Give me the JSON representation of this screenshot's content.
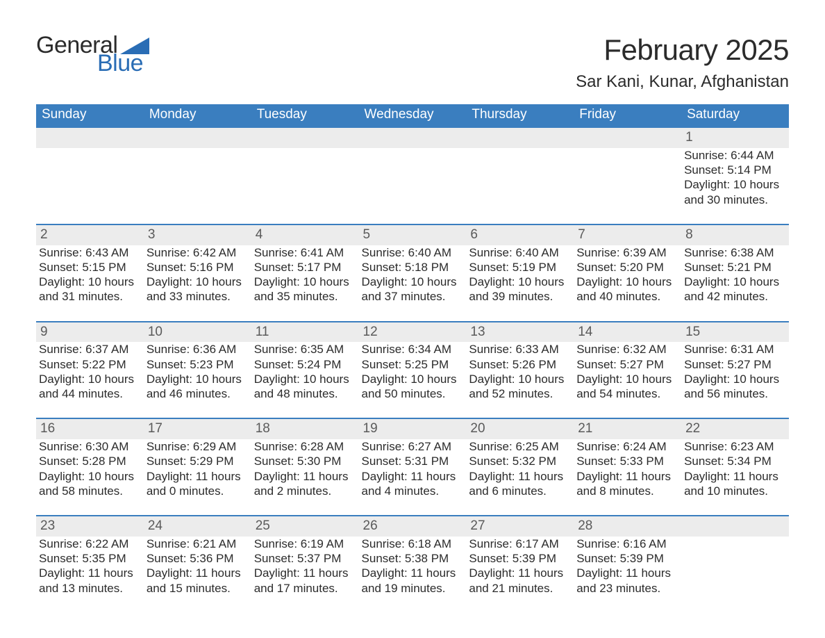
{
  "logo": {
    "text1": "General",
    "text2": "Blue"
  },
  "header": {
    "month_title": "February 2025",
    "location": "Sar Kani, Kunar, Afghanistan"
  },
  "colors": {
    "header_bg": "#3a7ebf",
    "header_text": "#ffffff",
    "daynum_bg": "#ececec",
    "daynum_border": "#3a7ebf",
    "body_text": "#2b2b2b",
    "daynum_text": "#5a5a5a",
    "logo_dark": "#2b2b2b",
    "logo_blue": "#2a6db5",
    "page_bg": "#ffffff"
  },
  "fonts": {
    "family": "Segoe UI / Arial",
    "month_title_pt": 42,
    "location_pt": 24,
    "weekday_pt": 19,
    "daynum_pt": 19,
    "detail_pt": 17
  },
  "weekdays": [
    "Sunday",
    "Monday",
    "Tuesday",
    "Wednesday",
    "Thursday",
    "Friday",
    "Saturday"
  ],
  "weeks": [
    [
      null,
      null,
      null,
      null,
      null,
      null,
      {
        "n": "1",
        "sunrise": "Sunrise: 6:44 AM",
        "sunset": "Sunset: 5:14 PM",
        "day1": "Daylight: 10 hours",
        "day2": "and 30 minutes."
      }
    ],
    [
      {
        "n": "2",
        "sunrise": "Sunrise: 6:43 AM",
        "sunset": "Sunset: 5:15 PM",
        "day1": "Daylight: 10 hours",
        "day2": "and 31 minutes."
      },
      {
        "n": "3",
        "sunrise": "Sunrise: 6:42 AM",
        "sunset": "Sunset: 5:16 PM",
        "day1": "Daylight: 10 hours",
        "day2": "and 33 minutes."
      },
      {
        "n": "4",
        "sunrise": "Sunrise: 6:41 AM",
        "sunset": "Sunset: 5:17 PM",
        "day1": "Daylight: 10 hours",
        "day2": "and 35 minutes."
      },
      {
        "n": "5",
        "sunrise": "Sunrise: 6:40 AM",
        "sunset": "Sunset: 5:18 PM",
        "day1": "Daylight: 10 hours",
        "day2": "and 37 minutes."
      },
      {
        "n": "6",
        "sunrise": "Sunrise: 6:40 AM",
        "sunset": "Sunset: 5:19 PM",
        "day1": "Daylight: 10 hours",
        "day2": "and 39 minutes."
      },
      {
        "n": "7",
        "sunrise": "Sunrise: 6:39 AM",
        "sunset": "Sunset: 5:20 PM",
        "day1": "Daylight: 10 hours",
        "day2": "and 40 minutes."
      },
      {
        "n": "8",
        "sunrise": "Sunrise: 6:38 AM",
        "sunset": "Sunset: 5:21 PM",
        "day1": "Daylight: 10 hours",
        "day2": "and 42 minutes."
      }
    ],
    [
      {
        "n": "9",
        "sunrise": "Sunrise: 6:37 AM",
        "sunset": "Sunset: 5:22 PM",
        "day1": "Daylight: 10 hours",
        "day2": "and 44 minutes."
      },
      {
        "n": "10",
        "sunrise": "Sunrise: 6:36 AM",
        "sunset": "Sunset: 5:23 PM",
        "day1": "Daylight: 10 hours",
        "day2": "and 46 minutes."
      },
      {
        "n": "11",
        "sunrise": "Sunrise: 6:35 AM",
        "sunset": "Sunset: 5:24 PM",
        "day1": "Daylight: 10 hours",
        "day2": "and 48 minutes."
      },
      {
        "n": "12",
        "sunrise": "Sunrise: 6:34 AM",
        "sunset": "Sunset: 5:25 PM",
        "day1": "Daylight: 10 hours",
        "day2": "and 50 minutes."
      },
      {
        "n": "13",
        "sunrise": "Sunrise: 6:33 AM",
        "sunset": "Sunset: 5:26 PM",
        "day1": "Daylight: 10 hours",
        "day2": "and 52 minutes."
      },
      {
        "n": "14",
        "sunrise": "Sunrise: 6:32 AM",
        "sunset": "Sunset: 5:27 PM",
        "day1": "Daylight: 10 hours",
        "day2": "and 54 minutes."
      },
      {
        "n": "15",
        "sunrise": "Sunrise: 6:31 AM",
        "sunset": "Sunset: 5:27 PM",
        "day1": "Daylight: 10 hours",
        "day2": "and 56 minutes."
      }
    ],
    [
      {
        "n": "16",
        "sunrise": "Sunrise: 6:30 AM",
        "sunset": "Sunset: 5:28 PM",
        "day1": "Daylight: 10 hours",
        "day2": "and 58 minutes."
      },
      {
        "n": "17",
        "sunrise": "Sunrise: 6:29 AM",
        "sunset": "Sunset: 5:29 PM",
        "day1": "Daylight: 11 hours",
        "day2": "and 0 minutes."
      },
      {
        "n": "18",
        "sunrise": "Sunrise: 6:28 AM",
        "sunset": "Sunset: 5:30 PM",
        "day1": "Daylight: 11 hours",
        "day2": "and 2 minutes."
      },
      {
        "n": "19",
        "sunrise": "Sunrise: 6:27 AM",
        "sunset": "Sunset: 5:31 PM",
        "day1": "Daylight: 11 hours",
        "day2": "and 4 minutes."
      },
      {
        "n": "20",
        "sunrise": "Sunrise: 6:25 AM",
        "sunset": "Sunset: 5:32 PM",
        "day1": "Daylight: 11 hours",
        "day2": "and 6 minutes."
      },
      {
        "n": "21",
        "sunrise": "Sunrise: 6:24 AM",
        "sunset": "Sunset: 5:33 PM",
        "day1": "Daylight: 11 hours",
        "day2": "and 8 minutes."
      },
      {
        "n": "22",
        "sunrise": "Sunrise: 6:23 AM",
        "sunset": "Sunset: 5:34 PM",
        "day1": "Daylight: 11 hours",
        "day2": "and 10 minutes."
      }
    ],
    [
      {
        "n": "23",
        "sunrise": "Sunrise: 6:22 AM",
        "sunset": "Sunset: 5:35 PM",
        "day1": "Daylight: 11 hours",
        "day2": "and 13 minutes."
      },
      {
        "n": "24",
        "sunrise": "Sunrise: 6:21 AM",
        "sunset": "Sunset: 5:36 PM",
        "day1": "Daylight: 11 hours",
        "day2": "and 15 minutes."
      },
      {
        "n": "25",
        "sunrise": "Sunrise: 6:19 AM",
        "sunset": "Sunset: 5:37 PM",
        "day1": "Daylight: 11 hours",
        "day2": "and 17 minutes."
      },
      {
        "n": "26",
        "sunrise": "Sunrise: 6:18 AM",
        "sunset": "Sunset: 5:38 PM",
        "day1": "Daylight: 11 hours",
        "day2": "and 19 minutes."
      },
      {
        "n": "27",
        "sunrise": "Sunrise: 6:17 AM",
        "sunset": "Sunset: 5:39 PM",
        "day1": "Daylight: 11 hours",
        "day2": "and 21 minutes."
      },
      {
        "n": "28",
        "sunrise": "Sunrise: 6:16 AM",
        "sunset": "Sunset: 5:39 PM",
        "day1": "Daylight: 11 hours",
        "day2": "and 23 minutes."
      },
      null
    ]
  ]
}
